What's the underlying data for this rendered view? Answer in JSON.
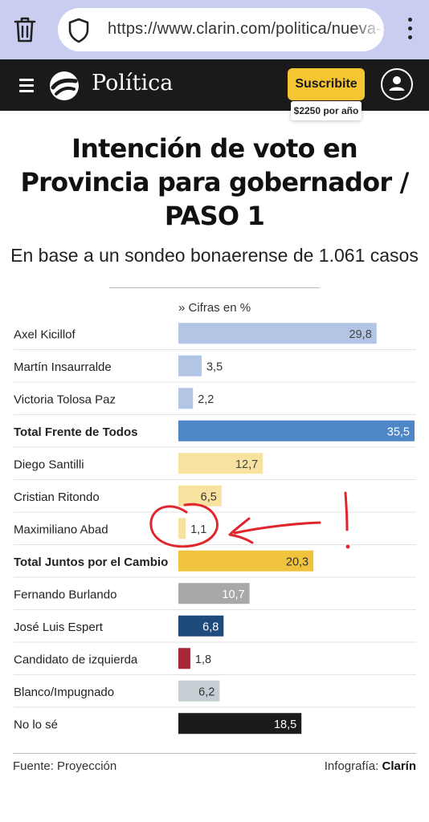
{
  "browser": {
    "url": "https://www.clarin.com/politica/nueva-c",
    "icons": [
      "trash-icon",
      "shield-icon",
      "kebab-menu-icon"
    ]
  },
  "header": {
    "section": "Política",
    "subscribe_label": "Suscribite",
    "price": "$2250 por año",
    "icons": [
      "hamburger-menu-icon",
      "clarin-logo",
      "user-account-icon"
    ]
  },
  "chart_data": {
    "type": "bar",
    "orientation": "horizontal",
    "title": "Intención de voto en Provincia para gobernador / PASO 1",
    "subtitle": "En base a un sondeo bonaerense de 1.061 casos",
    "units_note": "» Cifras en %",
    "xlim": [
      0,
      35.5
    ],
    "grid": false,
    "categories": [
      "Axel Kicillof",
      "Martín Insaurralde",
      "Victoria Tolosa Paz",
      "Total Frente de Todos",
      "Diego Santilli",
      "Cristian Ritondo",
      "Maximiliano Abad",
      "Total Juntos por el Cambio",
      "Fernando Burlando",
      "José Luis Espert",
      "Candidato de izquierda",
      "Blanco/Impugnado",
      "No lo sé"
    ],
    "values": [
      29.8,
      3.5,
      2.2,
      35.5,
      12.7,
      6.5,
      1.1,
      20.3,
      10.7,
      6.8,
      1.8,
      6.2,
      18.5
    ],
    "value_labels": [
      "29,8",
      "3,5",
      "2,2",
      "35,5",
      "12,7",
      "6,5",
      "1,1",
      "20,3",
      "10,7",
      "6,8",
      "1,8",
      "6,2",
      "18,5"
    ],
    "bold": [
      false,
      false,
      false,
      true,
      false,
      false,
      false,
      true,
      false,
      false,
      false,
      false,
      false
    ],
    "colors": [
      "#b3c5e4",
      "#b3c5e4",
      "#b3c5e4",
      "#4f86c6",
      "#f8e2a0",
      "#f8e2a0",
      "#f8e2a0",
      "#f0c33c",
      "#a8a8a8",
      "#1f4a7c",
      "#a8273a",
      "#c4ced3",
      "#1b1b1b"
    ],
    "label_colors": [
      "#444",
      "#333",
      "#333",
      "#ffffff",
      "#444",
      "#333",
      "#333",
      "#333",
      "#ffffff",
      "#ffffff",
      "#333",
      "#333",
      "#ffffff"
    ]
  },
  "footer": {
    "source": "Fuente: Proyección",
    "credit_prefix": "Infografía:",
    "credit_brand": "Clarín"
  },
  "annotation": {
    "color": "#e0262c",
    "description_icons": [
      "hand-drawn-circle",
      "hand-drawn-arrow",
      "exclamation-mark"
    ]
  }
}
